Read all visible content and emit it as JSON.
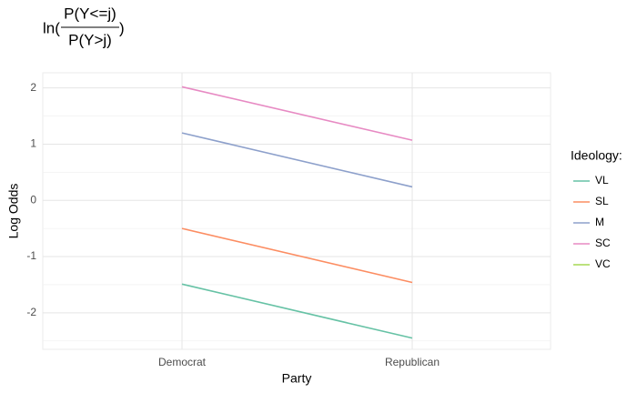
{
  "chart_data": {
    "type": "line",
    "title": {
      "prefix": "ln(",
      "numerator": "P(Y<=j)",
      "denominator": "P(Y>j)",
      "suffix": ")"
    },
    "x_label": "Party",
    "y_label": "Log Odds",
    "categories": [
      "Democrat",
      "Republican"
    ],
    "series": [
      {
        "name": "VL",
        "color": "#66c2a5",
        "values": [
          -1.49,
          -2.45
        ]
      },
      {
        "name": "SL",
        "color": "#fc8d62",
        "values": [
          -0.5,
          -1.46
        ]
      },
      {
        "name": "M",
        "color": "#8da0cb",
        "values": [
          1.2,
          0.24
        ]
      },
      {
        "name": "SC",
        "color": "#e78ac3",
        "values": [
          2.02,
          1.07
        ]
      },
      {
        "name": "VC",
        "color": "#a6d854",
        "values": [
          null,
          null
        ]
      }
    ],
    "legend_title": "Ideology:",
    "legend": "right",
    "ylim": [
      -2.65,
      2.27
    ],
    "yticks": [
      -2,
      -1,
      0,
      1,
      2
    ],
    "y_minor_ticks": [
      -2.5,
      -1.5,
      -0.5,
      0.5,
      1.5
    ],
    "grid": true
  }
}
